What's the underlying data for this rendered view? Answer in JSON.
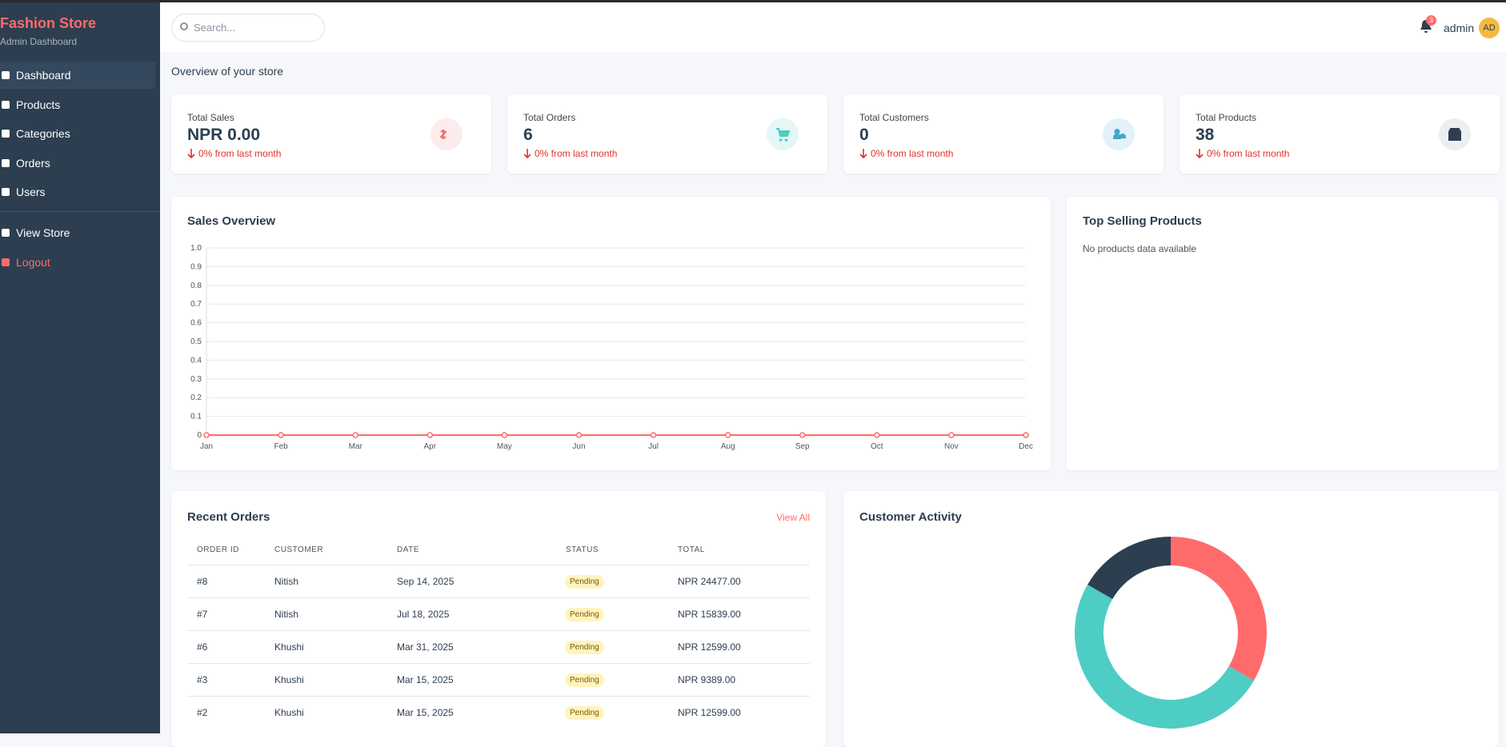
{
  "sidebar": {
    "brand": "Fashion Store",
    "subtitle": "Admin Dashboard",
    "nav": [
      "Dashboard",
      "Products",
      "Categories",
      "Orders",
      "Users"
    ],
    "links": [
      "View Store",
      "Logout"
    ]
  },
  "header": {
    "search_placeholder": "Search...",
    "notifications": 3,
    "user": "admin",
    "avatar": "AD"
  },
  "page_subtitle": "Overview of your store",
  "stats": [
    {
      "label": "Total Sales",
      "value": "NPR 0.00",
      "trend": "0% from last month"
    },
    {
      "label": "Total Orders",
      "value": "6",
      "trend": "0% from last month"
    },
    {
      "label": "Total Customers",
      "value": "0",
      "trend": "0% from last month"
    },
    {
      "label": "Total Products",
      "value": "38",
      "trend": "0% from last month"
    }
  ],
  "sales_chart": {
    "type": "line",
    "title": "Sales Overview",
    "categories": [
      "Jan",
      "Feb",
      "Mar",
      "Apr",
      "May",
      "Jun",
      "Jul",
      "Aug",
      "Sep",
      "Oct",
      "Nov",
      "Dec"
    ],
    "values": [
      0,
      0,
      0,
      0,
      0,
      0,
      0,
      0,
      0,
      0,
      0,
      0
    ],
    "color": "#ff6b6b",
    "ylim": [
      0,
      1
    ],
    "yticks": [
      0,
      0.1,
      0.2,
      0.3,
      0.4,
      0.5,
      0.6,
      0.7,
      0.8,
      0.9,
      {
        "value": 1,
        "label": "1.0"
      }
    ],
    "grid": true
  },
  "top_products": {
    "title": "Top Selling Products",
    "message": "No products data available"
  },
  "recent_orders": {
    "title": "Recent Orders",
    "action": "View All",
    "columns": [
      "ORDER ID",
      "CUSTOMER",
      "DATE",
      "STATUS",
      "TOTAL"
    ],
    "rows": [
      [
        "#8",
        "Nitish",
        "Sep 14, 2025",
        "Pending",
        "NPR 24477.00"
      ],
      [
        "#7",
        "Nitish",
        "Jul 18, 2025",
        "Pending",
        "NPR 15839.00"
      ],
      [
        "#6",
        "Khushi",
        "Mar 31, 2025",
        "Pending",
        "NPR 12599.00"
      ],
      [
        "#3",
        "Khushi",
        "Mar 15, 2025",
        "Pending",
        "NPR 9389.00"
      ],
      [
        "#2",
        "Khushi",
        "Mar 15, 2025",
        "Pending",
        "NPR 12599.00"
      ]
    ]
  },
  "customer_activity": {
    "type": "doughnut",
    "title": "Customer Activity",
    "values": [
      2,
      3,
      1
    ],
    "colors": [
      "#ff6b6b",
      "#4ecdc4",
      "#2d3e50"
    ]
  }
}
